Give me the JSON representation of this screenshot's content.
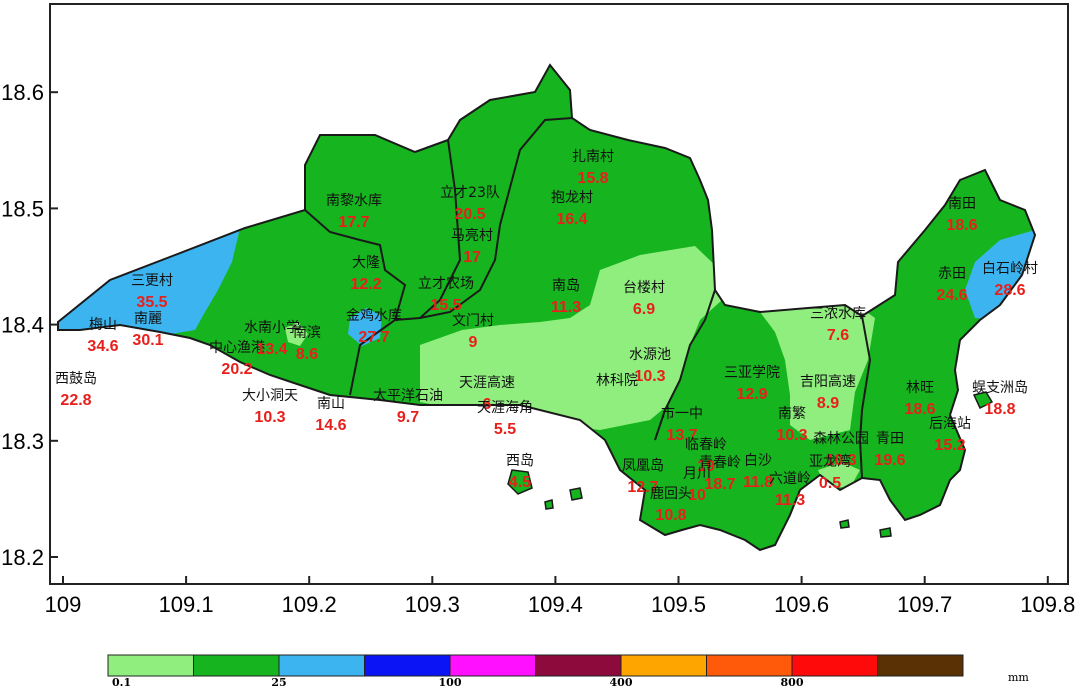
{
  "map": {
    "unit": "mm",
    "axes": {
      "x_ticks": [
        "109",
        "109.1",
        "109.2",
        "109.3",
        "109.4",
        "109.5",
        "109.6",
        "109.7",
        "109.8"
      ],
      "y_ticks": [
        "18.2",
        "18.3",
        "18.4",
        "18.5",
        "18.6"
      ]
    },
    "legend": {
      "colors": [
        "#90ee7e",
        "#16b41e",
        "#3cb4f0",
        "#0a14f5",
        "#ff10ff",
        "#8c0a3c",
        "#ffa500",
        "#ff5a0a",
        "#ff0a0a",
        "#5a3005"
      ],
      "labels": [
        "0.1",
        "25",
        "100",
        "400",
        "800"
      ]
    },
    "colors": {
      "rain_0_1_25": "#90ee7e",
      "rain_1_25_10": "#16b41e",
      "rain_10_25": "#3cb4f0",
      "outline": "#1a1a1a"
    },
    "stations": [
      {
        "name": "南田",
        "value": "18.6"
      },
      {
        "name": "白石岭村",
        "value": "28.6"
      },
      {
        "name": "赤田",
        "value": "24.6"
      },
      {
        "name": "三更村",
        "value": "35.5"
      },
      {
        "name": "梅山",
        "value": "34.6"
      },
      {
        "name": "南麗",
        "value": "30.1"
      },
      {
        "name": "西鼓岛",
        "value": "22.8"
      },
      {
        "name": "中心渔港",
        "value": "20.2"
      },
      {
        "name": "水南小学",
        "value": "13.4"
      },
      {
        "name": "南滨",
        "value": "8.6"
      },
      {
        "name": "大小洞天",
        "value": "10.3"
      },
      {
        "name": "南山",
        "value": "14.6"
      },
      {
        "name": "太平洋石油",
        "value": "9.7"
      },
      {
        "name": "金鸡水库",
        "value": "27.7"
      },
      {
        "name": "大隆",
        "value": "12.2"
      },
      {
        "name": "南黎水库",
        "value": "17.7"
      },
      {
        "name": "立才23队",
        "value": "20.5"
      },
      {
        "name": "马亮村",
        "value": "17"
      },
      {
        "name": "立才农场",
        "value": "15.5"
      },
      {
        "name": "文门村",
        "value": "9"
      },
      {
        "name": "扎南村",
        "value": "15.8"
      },
      {
        "name": "抱龙村",
        "value": "16.4"
      },
      {
        "name": "南岛",
        "value": "11.3"
      },
      {
        "name": "台楼村",
        "value": "6.9"
      },
      {
        "name": "天涯高速",
        "value": "6"
      },
      {
        "name": "天涯海角",
        "value": "5.5"
      },
      {
        "name": "西岛",
        "value": "4.5"
      },
      {
        "name": "水源池",
        "value": "10.3"
      },
      {
        "name": "林科院",
        "value": ""
      },
      {
        "name": "三亚学院",
        "value": "12.9"
      },
      {
        "name": "三浓水库",
        "value": "7.6"
      },
      {
        "name": "吉阳高速",
        "value": "8.9"
      },
      {
        "name": "南繁",
        "value": "10.3"
      },
      {
        "name": "市一中",
        "value": "13.7"
      },
      {
        "name": "临春岭",
        "value": "19"
      },
      {
        "name": "凤凰岛",
        "value": "12.7"
      },
      {
        "name": "鹿回头",
        "value": "10.8"
      },
      {
        "name": "月川",
        "value": "10"
      },
      {
        "name": "青春岭",
        "value": "18.7"
      },
      {
        "name": "白沙",
        "value": "11.8"
      },
      {
        "name": "六道岭",
        "value": "11.3"
      },
      {
        "name": "森林公园",
        "value": "10.3"
      },
      {
        "name": "亚龙湾",
        "value": "0.5"
      },
      {
        "name": "青田",
        "value": "19.6"
      },
      {
        "name": "林旺",
        "value": "18.6"
      },
      {
        "name": "后海站",
        "value": "15.2"
      },
      {
        "name": "蜈支洲岛",
        "value": "18.8"
      }
    ]
  }
}
